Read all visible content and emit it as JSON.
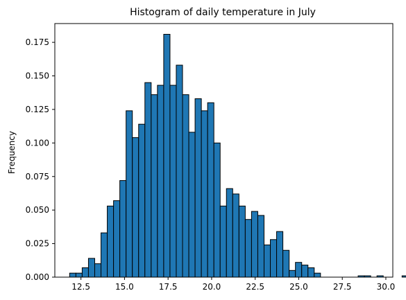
{
  "chart_data": {
    "type": "bar",
    "title": "Histogram of daily temperature in July",
    "xlabel": "",
    "ylabel": "Frequency",
    "bin_start": 11.85,
    "bin_width": 0.36,
    "values": [
      0.003,
      0.003,
      0.007,
      0.014,
      0.01,
      0.033,
      0.053,
      0.057,
      0.072,
      0.124,
      0.104,
      0.114,
      0.145,
      0.136,
      0.143,
      0.181,
      0.143,
      0.158,
      0.136,
      0.108,
      0.133,
      0.124,
      0.13,
      0.1,
      0.053,
      0.066,
      0.062,
      0.053,
      0.043,
      0.049,
      0.046,
      0.024,
      0.028,
      0.034,
      0.02,
      0.005,
      0.011,
      0.009,
      0.007,
      0.003,
      0.0,
      0.0,
      0.0,
      0.0,
      0.0,
      0.0,
      0.001,
      0.001,
      0.0,
      0.001,
      0.0,
      0.0,
      0.0,
      0.001
    ],
    "xlim": [
      11.0,
      30.4
    ],
    "ylim": [
      0,
      0.189
    ],
    "xticks": [
      "12.5",
      "15.0",
      "17.5",
      "20.0",
      "22.5",
      "25.0",
      "27.5",
      "30.0"
    ],
    "xtick_values": [
      12.5,
      15.0,
      17.5,
      20.0,
      22.5,
      25.0,
      27.5,
      30.0
    ],
    "yticks": [
      "0.000",
      "0.025",
      "0.050",
      "0.075",
      "0.100",
      "0.125",
      "0.150",
      "0.175"
    ],
    "ytick_values": [
      0,
      0.025,
      0.05,
      0.075,
      0.1,
      0.125,
      0.15,
      0.175
    ],
    "bar_color": "#1f77b4",
    "edge_color": "#000000",
    "grid": false,
    "legend": "none"
  }
}
